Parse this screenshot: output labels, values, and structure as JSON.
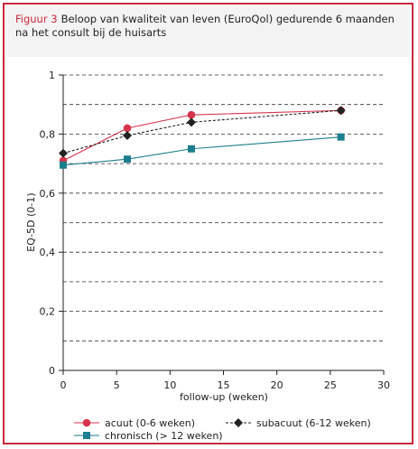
{
  "figure": {
    "label": "Figuur 3",
    "caption": "Beloop van kwaliteit van leven (EuroQol) gedurende 6 maanden na het consult bij de huisarts"
  },
  "chart_data": {
    "type": "line",
    "xlabel": "follow-up (weken)",
    "ylabel": "EQ-5D (0-1)",
    "xlim": [
      0,
      30
    ],
    "ylim": [
      0,
      1
    ],
    "xticks": [
      0,
      5,
      10,
      15,
      20,
      25,
      30
    ],
    "yticks": [
      0,
      0.2,
      0.4,
      0.6,
      0.8,
      1
    ],
    "xtick_labels": [
      "0",
      "5",
      "10",
      "15",
      "20",
      "25",
      "30"
    ],
    "ytick_labels": [
      "0",
      "0,2",
      "0,4",
      "0,6",
      "0,8",
      "1"
    ],
    "grid": "horizontal dashed, every 0.1",
    "legend_placement": "bottom",
    "series": [
      {
        "name": "acuut (0-6 weken)",
        "x": [
          0,
          6,
          12,
          26
        ],
        "y": [
          0.71,
          0.82,
          0.865,
          0.88
        ],
        "color": "#d6344c",
        "marker": "circle",
        "line": "solid"
      },
      {
        "name": "subacuut (6-12 weken)",
        "x": [
          0,
          6,
          12,
          26
        ],
        "y": [
          0.735,
          0.795,
          0.84,
          0.88
        ],
        "color": "#222222",
        "marker": "diamond",
        "line": "dashed"
      },
      {
        "name": "chronisch (> 12 weken)",
        "x": [
          0,
          6,
          12,
          26
        ],
        "y": [
          0.695,
          0.715,
          0.75,
          0.79
        ],
        "color": "#1d7e8e",
        "marker": "square",
        "line": "solid"
      }
    ]
  }
}
